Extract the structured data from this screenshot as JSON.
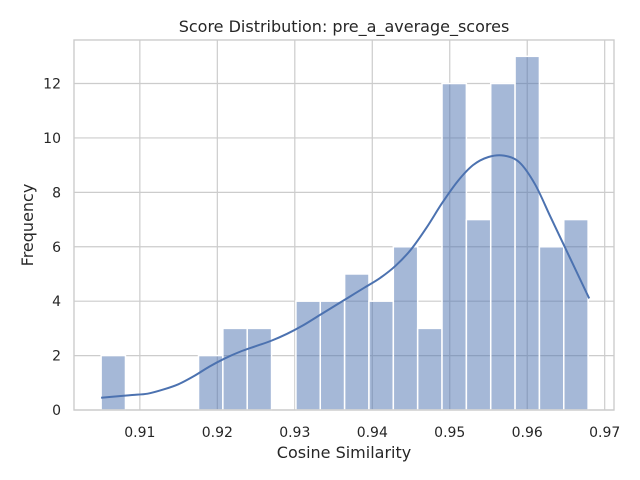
{
  "chart_data": {
    "type": "histogram",
    "title": "Score Distribution: pre_a_average_scores",
    "xlabel": "Cosine Similarity",
    "ylabel": "Frequency",
    "xlim": [
      0.9015,
      0.9712
    ],
    "ylim": [
      0,
      13.6
    ],
    "xticks": [
      0.91,
      0.92,
      0.93,
      0.94,
      0.95,
      0.96,
      0.97
    ],
    "xtick_labels": [
      "0.91",
      "0.92",
      "0.93",
      "0.94",
      "0.95",
      "0.96",
      "0.97"
    ],
    "yticks": [
      0,
      2,
      4,
      6,
      8,
      10,
      12
    ],
    "ytick_labels": [
      "0",
      "2",
      "4",
      "6",
      "8",
      "10",
      "12"
    ],
    "bin_start": 0.905,
    "bin_width": 0.003143,
    "counts": [
      2,
      0,
      0,
      0,
      2,
      3,
      3,
      0,
      4,
      4,
      5,
      4,
      6,
      3,
      12,
      7,
      12,
      13,
      6,
      7
    ],
    "kde": {
      "x": [
        0.905,
        0.907,
        0.909,
        0.911,
        0.913,
        0.915,
        0.917,
        0.919,
        0.921,
        0.923,
        0.925,
        0.927,
        0.929,
        0.931,
        0.933,
        0.935,
        0.937,
        0.939,
        0.941,
        0.943,
        0.945,
        0.947,
        0.949,
        0.951,
        0.953,
        0.955,
        0.957,
        0.959,
        0.961,
        0.963,
        0.965,
        0.967,
        0.968
      ],
      "y": [
        0.45,
        0.5,
        0.55,
        0.6,
        0.75,
        0.95,
        1.25,
        1.6,
        1.9,
        2.15,
        2.35,
        2.55,
        2.8,
        3.1,
        3.45,
        3.8,
        4.15,
        4.5,
        4.85,
        5.3,
        5.9,
        6.7,
        7.6,
        8.4,
        9.0,
        9.3,
        9.35,
        9.1,
        8.3,
        7.1,
        5.9,
        4.7,
        4.1
      ]
    },
    "grid": true,
    "colors": {
      "bar": "#4c72b0",
      "line": "#4c72b0",
      "grid": "#cccccc",
      "text": "#262626"
    }
  }
}
